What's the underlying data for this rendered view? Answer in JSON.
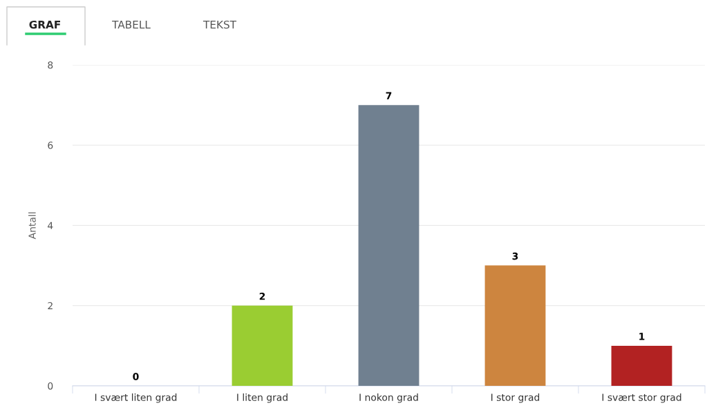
{
  "chart_data": {
    "type": "bar",
    "ylabel": "Antall",
    "categories": [
      "I svært liten grad",
      "I liten grad",
      "I nokon grad",
      "I stor grad",
      "I svært stor grad"
    ],
    "values": [
      0,
      2,
      7,
      3,
      1
    ],
    "colors": [
      "#7cb5ec",
      "#9acd32",
      "#708090",
      "#cd853f",
      "#b22222"
    ],
    "ylim": [
      0,
      8
    ],
    "yticks": [
      0,
      2,
      4,
      6,
      8
    ],
    "grid": "y",
    "data_labels": true,
    "legend": false,
    "annotations": [
      "GRAF",
      "TABELL",
      "TEKST"
    ]
  }
}
